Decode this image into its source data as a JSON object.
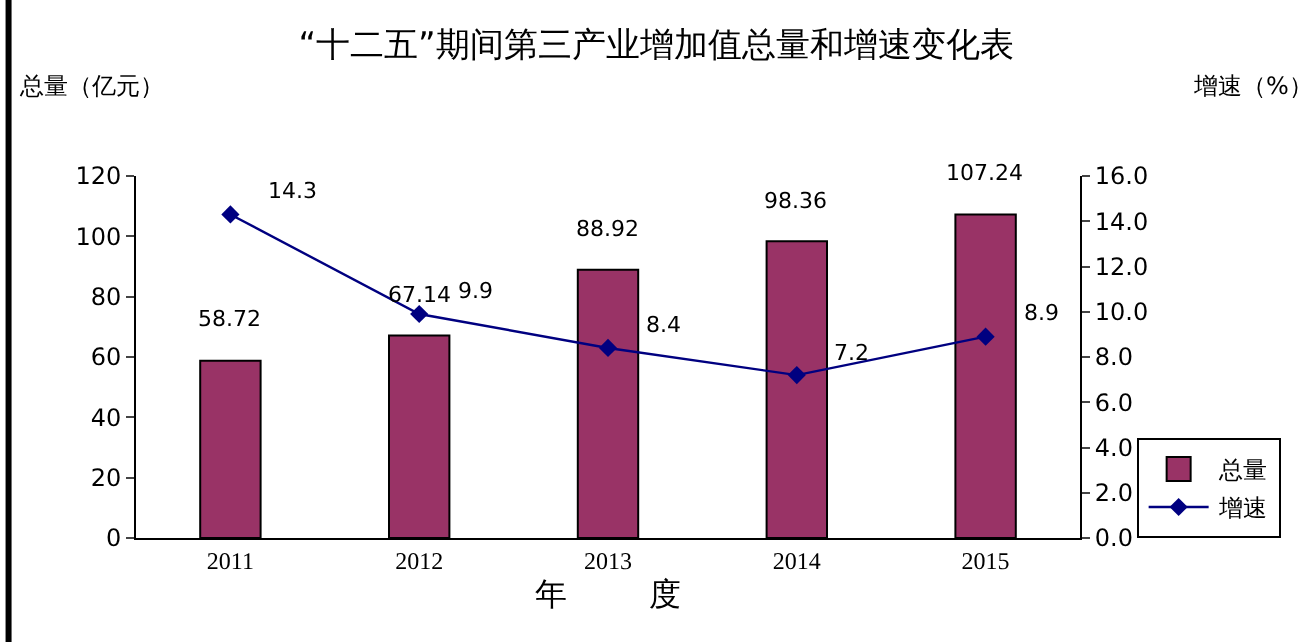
{
  "chart_data": {
    "type": "bar",
    "title": "“十二五”期间第三产业增加值总量和增速变化表",
    "xlabel": "年        度",
    "ylabel": "总量（亿元）",
    "y2label": "增速（%）",
    "categories": [
      "2011",
      "2012",
      "2013",
      "2014",
      "2015"
    ],
    "series": [
      {
        "name": "总量",
        "color": "#993366",
        "values": [
          58.72,
          67.14,
          88.92,
          98.36,
          107.24
        ]
      },
      {
        "name": "增速",
        "type": "line",
        "axis": "y2",
        "color": "#000080",
        "marker": "diamond",
        "values": [
          14.3,
          9.9,
          8.4,
          7.2,
          8.9
        ]
      }
    ],
    "ylim": [
      0,
      120
    ],
    "yticks": [
      0,
      20,
      40,
      60,
      80,
      100,
      120
    ],
    "y2lim": [
      0,
      16
    ],
    "y2ticks": [
      {
        "value": 0,
        "label": "0.0"
      },
      {
        "value": 2,
        "label": "2.0"
      },
      {
        "value": 4,
        "label": "4.0"
      },
      {
        "value": 6,
        "label": "6.0"
      },
      {
        "value": 8,
        "label": "8.0"
      },
      {
        "value": 10,
        "label": "10.0"
      },
      {
        "value": 12,
        "label": "12.0"
      },
      {
        "value": 14,
        "label": "14.0"
      },
      {
        "value": 16,
        "label": "16.0"
      }
    ],
    "data_labels": true,
    "grid": false,
    "legend": "bottom right"
  }
}
